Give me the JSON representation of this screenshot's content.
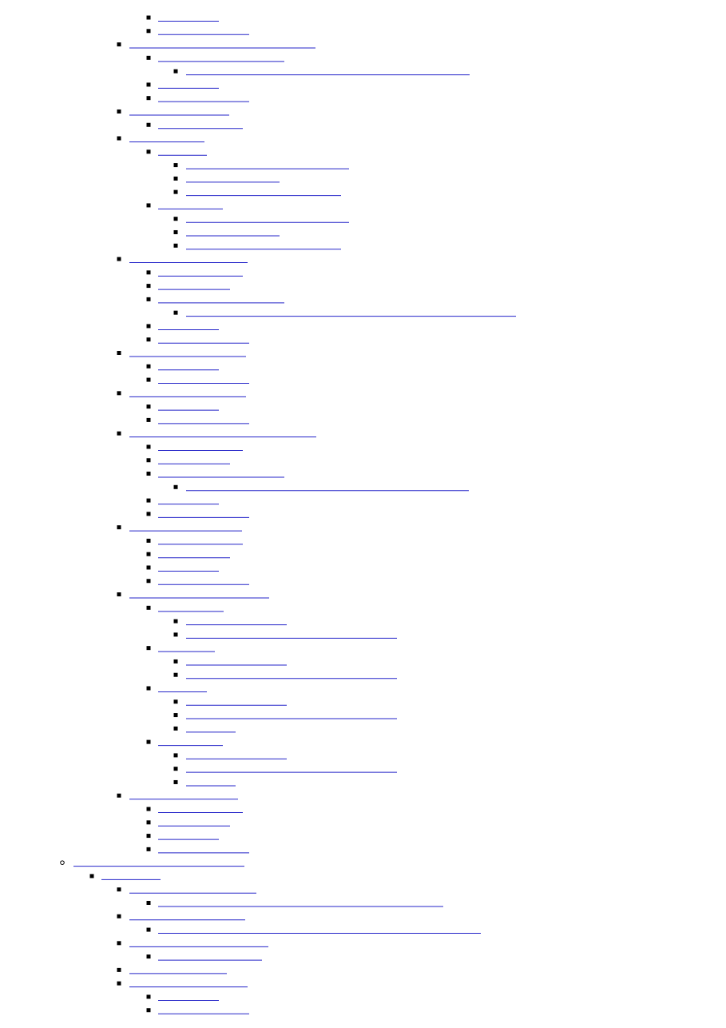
{
  "nav_list": {
    "items": [
      {
        "depth": 3
      },
      {
        "depth": 3
      },
      {
        "depth": 2
      },
      {
        "depth": 3
      },
      {
        "depth": 4
      },
      {
        "depth": 3
      },
      {
        "depth": 3
      },
      {
        "depth": 2
      },
      {
        "depth": 3
      },
      {
        "depth": 2
      },
      {
        "depth": 3
      },
      {
        "depth": 4
      },
      {
        "depth": 4
      },
      {
        "depth": 4
      },
      {
        "depth": 3
      },
      {
        "depth": 4
      },
      {
        "depth": 4
      },
      {
        "depth": 4
      },
      {
        "depth": 2
      },
      {
        "depth": 3
      },
      {
        "depth": 3
      },
      {
        "depth": 3
      },
      {
        "depth": 4
      },
      {
        "depth": 3
      },
      {
        "depth": 3
      },
      {
        "depth": 2
      },
      {
        "depth": 3
      },
      {
        "depth": 3
      },
      {
        "depth": 2
      },
      {
        "depth": 3
      },
      {
        "depth": 3
      },
      {
        "depth": 2
      },
      {
        "depth": 3
      },
      {
        "depth": 3
      },
      {
        "depth": 3
      },
      {
        "depth": 4
      },
      {
        "depth": 3
      },
      {
        "depth": 3
      },
      {
        "depth": 2
      },
      {
        "depth": 3
      },
      {
        "depth": 3
      },
      {
        "depth": 3
      },
      {
        "depth": 3
      },
      {
        "depth": 2
      },
      {
        "depth": 3
      },
      {
        "depth": 4
      },
      {
        "depth": 4
      },
      {
        "depth": 3
      },
      {
        "depth": 4
      },
      {
        "depth": 4
      },
      {
        "depth": 3
      },
      {
        "depth": 4
      },
      {
        "depth": 4
      },
      {
        "depth": 4
      },
      {
        "depth": 3
      },
      {
        "depth": 4
      },
      {
        "depth": 4
      },
      {
        "depth": 4
      },
      {
        "depth": 2
      },
      {
        "depth": 3
      },
      {
        "depth": 3
      },
      {
        "depth": 3
      },
      {
        "depth": 3
      },
      {
        "depth": 0
      },
      {
        "depth": 1
      },
      {
        "depth": 2
      },
      {
        "depth": 3
      },
      {
        "depth": 2
      },
      {
        "depth": 3
      },
      {
        "depth": 2
      },
      {
        "depth": 3
      },
      {
        "depth": 2
      },
      {
        "depth": 2
      },
      {
        "depth": 3
      },
      {
        "depth": 3
      }
    ]
  }
}
